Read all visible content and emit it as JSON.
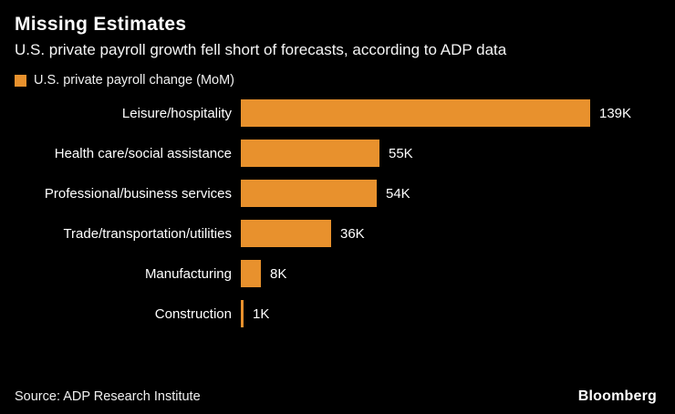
{
  "header": {
    "title": "Missing Estimates",
    "subtitle": "U.S. private payroll growth fell short of forecasts, according to ADP data"
  },
  "legend": {
    "label": "U.S. private payroll change (MoM)"
  },
  "footer": {
    "source": "Source: ADP Research Institute",
    "brand": "Bloomberg"
  },
  "colors": {
    "bar": "#E8912D",
    "background": "#000000",
    "text": "#FFFFFF"
  },
  "chart_data": {
    "type": "bar",
    "orientation": "horizontal",
    "title": "Missing Estimates",
    "subtitle": "U.S. private payroll growth fell short of forecasts, according to ADP data",
    "series_name": "U.S. private payroll change (MoM)",
    "categories": [
      "Leisure/hospitality",
      "Health care/social assistance",
      "Professional/business services",
      "Trade/transportation/utilities",
      "Manufacturing",
      "Construction"
    ],
    "values": [
      139,
      55,
      54,
      36,
      8,
      1
    ],
    "value_labels": [
      "139K",
      "55K",
      "54K",
      "36K",
      "8K",
      "1K"
    ],
    "unit": "K (thousands of jobs, month-over-month)",
    "xlim": [
      0,
      139
    ],
    "grid": false,
    "legend_position": "top-left",
    "source": "ADP Research Institute"
  }
}
